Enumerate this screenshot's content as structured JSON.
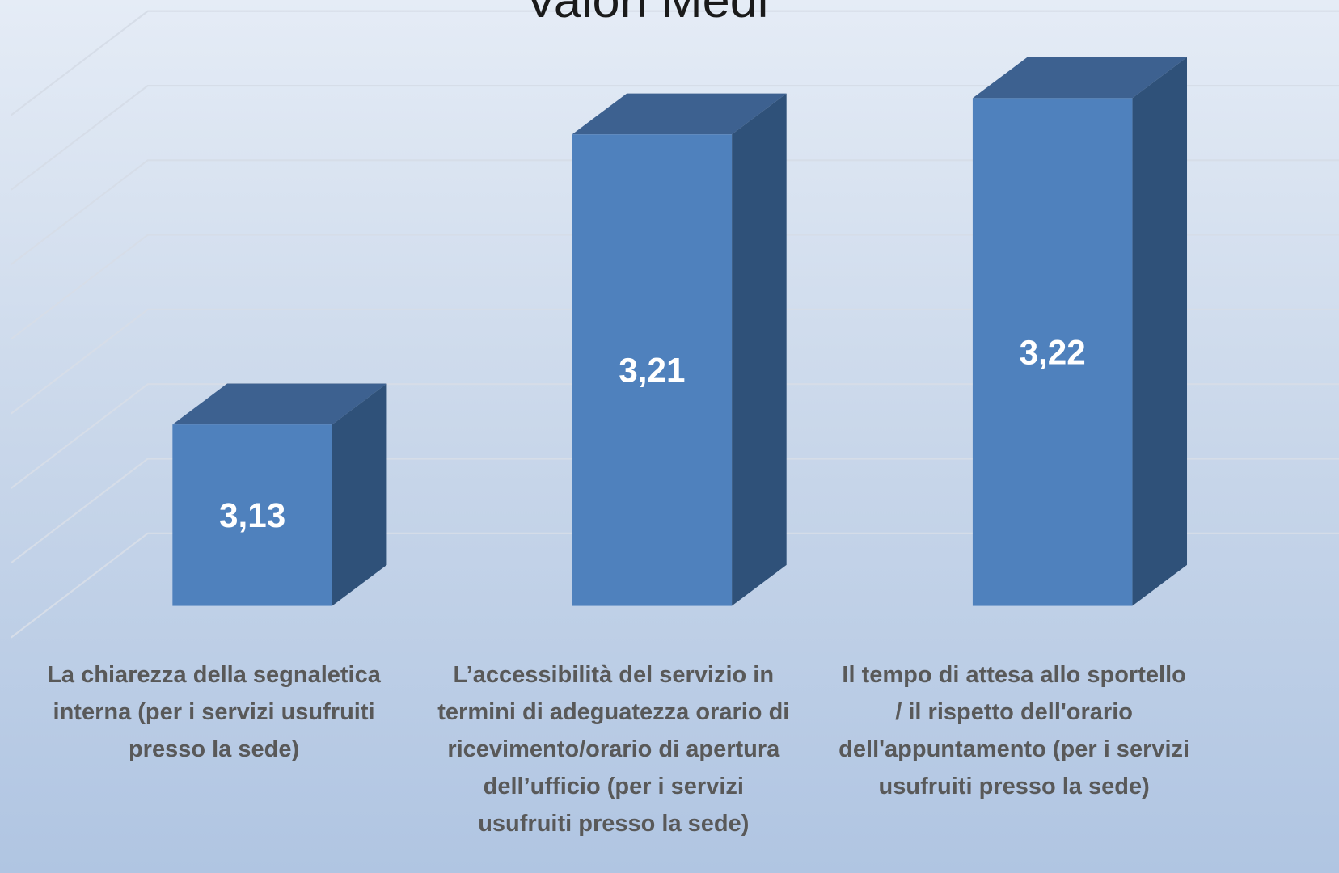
{
  "chart_data": {
    "type": "bar3d",
    "title": "Valori Medi",
    "categories": [
      "La chiarezza della segnaletica interna (per i servizi usufruiti presso la sede)",
      "L’accessibilità del servizio in termini di adeguatezza orario di ricevimento/orario di apertura dell’ufficio (per i servizi usufruiti presso la sede)",
      "Il tempo di attesa allo sportello / il rispetto dell'orario dell'appuntamento (per i servizi usufruiti presso la sede)"
    ],
    "values": [
      3.13,
      3.21,
      3.22
    ],
    "value_labels": [
      "3,13",
      "3,21",
      "3,22"
    ],
    "color": "#4f81bd",
    "ylim": [
      3.08,
      3.22
    ],
    "yticks": [
      3.08,
      3.1,
      3.12,
      3.14,
      3.16,
      3.18,
      3.2,
      3.22
    ],
    "grid": true
  }
}
